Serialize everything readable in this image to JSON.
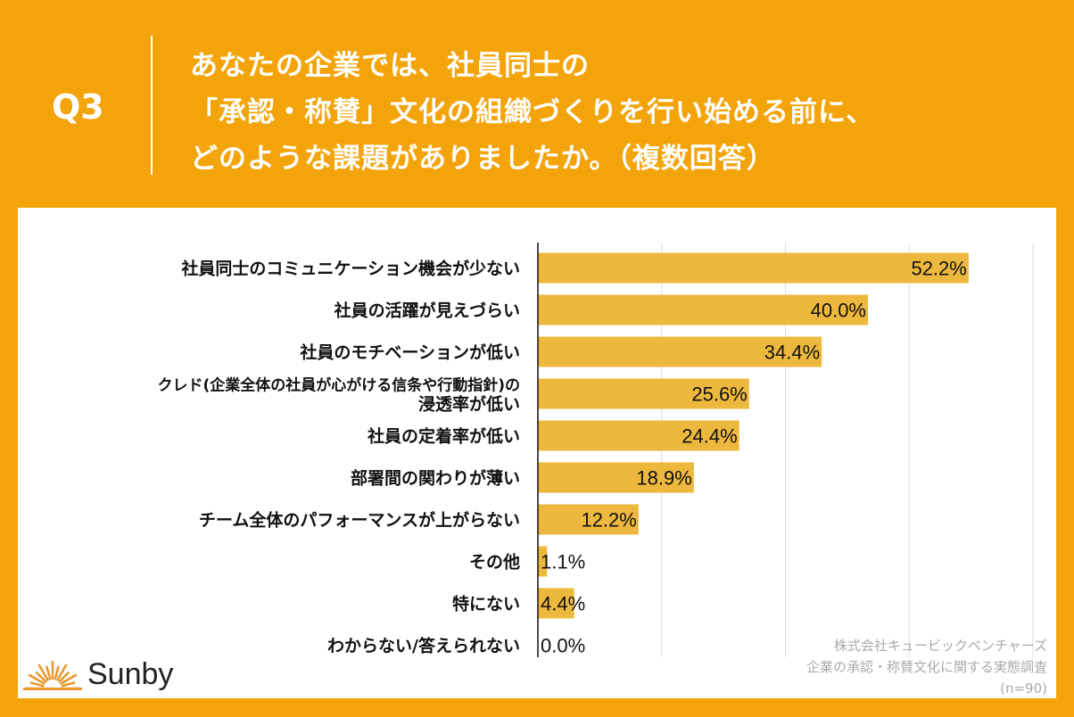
{
  "header": {
    "question": "Q3",
    "title_lines": [
      "あなたの企業では、社員同士の",
      "「承認・称賛」文化の組織づくりを行い始める前に、",
      "どのような課題がありましたか。（複数回答）"
    ]
  },
  "chart_data": {
    "type": "bar",
    "orientation": "horizontal",
    "categories": [
      "社員同士のコミュニケーション機会が少ない",
      "社員の活躍が見えづらい",
      "社員のモチベーションが低い",
      "クレド(企業全体の社員が心がける信条や行動指針)の浸透率が低い",
      "社員の定着率が低い",
      "部署間の関わりが薄い",
      "チーム全体のパフォーマンスが上がらない",
      "その他",
      "特にない",
      "わからない/答えられない"
    ],
    "category_lines": [
      [
        "社員同士のコミュニケーション機会が少ない"
      ],
      [
        "社員の活躍が見えづらい"
      ],
      [
        "社員のモチベーションが低い"
      ],
      [
        "クレド(企業全体の社員が心がける信条や行動指針)の",
        "浸透率が低い"
      ],
      [
        "社員の定着率が低い"
      ],
      [
        "部署間の関わりが薄い"
      ],
      [
        "チーム全体のパフォーマンスが上がらない"
      ],
      [
        "その他"
      ],
      [
        "特にない"
      ],
      [
        "わからない/答えられない"
      ]
    ],
    "values": [
      52.2,
      40.0,
      34.4,
      25.6,
      24.4,
      18.9,
      12.2,
      1.1,
      4.4,
      0.0
    ],
    "labels": [
      "52.2%",
      "40.0%",
      "34.4%",
      "25.6%",
      "24.4%",
      "18.9%",
      "12.2%",
      "1.1%",
      "4.4%",
      "0.0%"
    ],
    "xlim": [
      0,
      60
    ],
    "grid_step": 15,
    "grid": true,
    "bar_color": "#EDB83E"
  },
  "source": {
    "lines": [
      "株式会社キュービックベンチャーズ",
      "企業の承認・称賛文化に関する実態調査",
      "(n=90)"
    ]
  },
  "logo": {
    "text": "Sunby",
    "color": "#E9962A"
  }
}
